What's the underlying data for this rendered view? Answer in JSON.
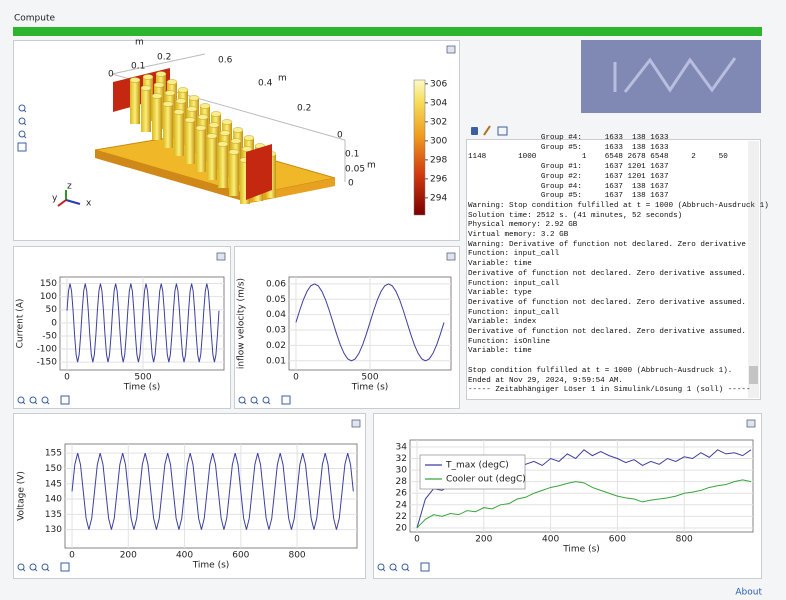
{
  "window": {
    "title": "Compute",
    "about": "About"
  },
  "model_view": {
    "axis_labels": [
      "m",
      "0.2",
      "0.1",
      "0",
      "0.6",
      "m",
      "0.4",
      "0.2",
      "0",
      "0.1",
      "m",
      "0.05",
      "0"
    ],
    "triad": [
      "z",
      "y",
      "x"
    ],
    "colorbar": {
      "ticks": [
        294,
        296,
        298,
        300,
        302,
        304,
        306
      ],
      "lim": [
        292.2,
        306.4
      ]
    }
  },
  "log": {
    "blocks": [
      [
        "                Group #4:     1633  138 1633",
        "                Group #5:     1633  138 1633",
        "1148       1000          1    6548 2678 6548     2     50",
        "                Group #1:     1637 1201 1637",
        "                Group #2:     1637 1201 1637",
        "                Group #4:     1637  138 1637",
        "                Group #5:     1637  138 1637",
        "Warning: Stop condition fulfilled at t = 1000 (Abbruch-Ausdruck 1)",
        "Solution time: 2512 s. (41 minutes, 52 seconds)",
        "Physical memory: 2.92 GB",
        "Virtual memory: 3.2 GB",
        "Warning: Derivative of function not declared. Zero derivative",
        "Function: input_call",
        "Variable: time",
        "Derivative of function not declared. Zero derivative assumed.",
        "Function: input_call",
        "Variable: type",
        "Derivative of function not declared. Zero derivative assumed.",
        "Function: input_call",
        "Variable: index",
        "Derivative of function not declared. Zero derivative assumed.",
        "Function: isOnline",
        "Variable: time"
      ],
      [
        "Stop condition fulfilled at t = 1000 (Abbruch-Ausdruck 1).",
        "Ended at Nov 29, 2024, 9:59:54 AM.",
        "----- Zeitabhängiger Löser 1 in Simulink/Lösung 1 (soll) -----"
      ]
    ]
  },
  "chart_data": [
    {
      "type": "line",
      "xlabel": "Time (s)",
      "ylabel": "Current (A)",
      "color": "#3d3f9e",
      "grid": true,
      "xlim": [
        -46,
        1033
      ],
      "ylim": [
        -180,
        175
      ],
      "xticks": [
        0,
        500
      ],
      "yticks": [
        -150,
        -100,
        -50,
        0,
        50,
        100,
        150
      ],
      "x": [
        0,
        10,
        20,
        30,
        40,
        50,
        60,
        70,
        80,
        90,
        100,
        110,
        120,
        130,
        140,
        150,
        160,
        170,
        180,
        190,
        200,
        210,
        220,
        230,
        240,
        250,
        260,
        270,
        280,
        290,
        300,
        310,
        320,
        330,
        340,
        350,
        360,
        370,
        380,
        390,
        400,
        410,
        420,
        430,
        440,
        450,
        460,
        470,
        480,
        490,
        500,
        510,
        520,
        530,
        540,
        550,
        560,
        570,
        580,
        590,
        600,
        610,
        620,
        630,
        640,
        650,
        660,
        670,
        680,
        690,
        700,
        710,
        720,
        730,
        740,
        750,
        760,
        770,
        780,
        790,
        800,
        810,
        820,
        830,
        840,
        850,
        860,
        870,
        880,
        890,
        900,
        910,
        920,
        930,
        940,
        950,
        960,
        970,
        980,
        990,
        1000
      ],
      "values": [
        46.4,
        121.4,
        150,
        121.4,
        46.4,
        -46.4,
        -121.4,
        -150,
        -121.4,
        -46.4,
        46.4,
        121.4,
        150,
        121.4,
        46.4,
        -46.4,
        -121.4,
        -150,
        -121.4,
        -46.4,
        46.4,
        121.4,
        150,
        121.4,
        46.4,
        -46.4,
        -121.4,
        -150,
        -121.4,
        -46.4,
        46.4,
        121.4,
        150,
        121.4,
        46.4,
        -46.4,
        -121.4,
        -150,
        -121.4,
        -46.4,
        46.4,
        121.4,
        150,
        121.4,
        46.4,
        -46.4,
        -121.4,
        -150,
        -121.4,
        -46.4,
        46.4,
        121.4,
        150,
        121.4,
        46.4,
        -46.4,
        -121.4,
        -150,
        -121.4,
        -46.4,
        46.4,
        121.4,
        150,
        121.4,
        46.4,
        -46.4,
        -121.4,
        -150,
        -121.4,
        -46.4,
        46.4,
        121.4,
        150,
        121.4,
        46.4,
        -46.4,
        -121.4,
        -150,
        -121.4,
        -46.4,
        46.4,
        121.4,
        150,
        121.4,
        46.4,
        -46.4,
        -121.4,
        -150,
        -121.4,
        -46.4,
        46.4,
        121.4,
        150,
        121.4,
        46.4,
        -46.4,
        -121.4,
        -150,
        -121.4,
        -46.4,
        46.4
      ]
    },
    {
      "type": "line",
      "xlabel": "Time (s)",
      "ylabel": "inflow velocity (m/s)",
      "color": "#3d3f9e",
      "grid": true,
      "xlim": [
        -47,
        1047
      ],
      "ylim": [
        0.004,
        0.0645
      ],
      "xticks": [
        0,
        500
      ],
      "yticks": [
        0.01,
        0.02,
        0.03,
        0.04,
        0.05,
        0.06
      ],
      "x": [
        0,
        25,
        50,
        75,
        100,
        125,
        150,
        175,
        200,
        225,
        250,
        275,
        300,
        325,
        350,
        375,
        400,
        425,
        450,
        475,
        500,
        525,
        550,
        575,
        600,
        625,
        650,
        675,
        700,
        725,
        750,
        775,
        800,
        825,
        850,
        875,
        900,
        925,
        950,
        975,
        1000
      ],
      "values": [
        0.035,
        0.0427,
        0.0497,
        0.0552,
        0.0588,
        0.06,
        0.0588,
        0.0552,
        0.0497,
        0.0427,
        0.035,
        0.0273,
        0.0203,
        0.0148,
        0.0112,
        0.01,
        0.0112,
        0.0148,
        0.0203,
        0.0273,
        0.035,
        0.0427,
        0.0497,
        0.0552,
        0.0588,
        0.06,
        0.0588,
        0.0552,
        0.0497,
        0.0427,
        0.035,
        0.0273,
        0.0203,
        0.0148,
        0.0112,
        0.01,
        0.0112,
        0.0148,
        0.0203,
        0.0273,
        0.035
      ]
    },
    {
      "type": "line",
      "xlabel": "Time (s)",
      "ylabel": "Voltage (V)",
      "color": "#3d3f9e",
      "grid": true,
      "xlim": [
        -25,
        1013
      ],
      "ylim": [
        124,
        158
      ],
      "xticks": [
        0,
        200,
        400,
        600,
        800
      ],
      "yticks": [
        130,
        135,
        140,
        145,
        150,
        155
      ],
      "x": [
        0,
        10,
        20,
        30,
        40,
        50,
        60,
        70,
        80,
        90,
        100,
        110,
        120,
        130,
        140,
        150,
        160,
        170,
        180,
        190,
        200,
        210,
        220,
        230,
        240,
        250,
        260,
        270,
        280,
        290,
        300,
        310,
        320,
        330,
        340,
        350,
        360,
        370,
        380,
        390,
        400,
        410,
        420,
        430,
        440,
        450,
        460,
        470,
        480,
        490,
        500,
        510,
        520,
        530,
        540,
        550,
        560,
        570,
        580,
        590,
        600,
        610,
        620,
        630,
        640,
        650,
        660,
        670,
        680,
        690,
        700,
        710,
        720,
        730,
        740,
        750,
        760,
        770,
        780,
        790,
        800,
        810,
        820,
        830,
        840,
        850,
        860,
        870,
        880,
        890,
        900,
        910,
        920,
        930,
        940,
        950,
        960,
        970,
        980,
        990,
        1000
      ],
      "values": [
        142.5,
        151.3,
        155,
        151.3,
        142.5,
        133.7,
        130,
        133.7,
        142.5,
        151.3,
        155,
        151.3,
        142.5,
        133.7,
        130,
        133.7,
        142.5,
        151.3,
        155,
        151.3,
        142.5,
        133.7,
        130,
        133.7,
        142.5,
        151.3,
        155,
        151.3,
        142.5,
        133.7,
        130,
        133.7,
        142.5,
        151.3,
        155,
        151.3,
        142.5,
        133.7,
        130,
        133.7,
        142.5,
        151.3,
        155,
        151.3,
        142.5,
        133.7,
        130,
        133.7,
        142.5,
        151.3,
        155,
        151.3,
        142.5,
        133.7,
        130,
        133.7,
        142.5,
        151.3,
        155,
        151.3,
        142.5,
        133.7,
        130,
        133.7,
        142.5,
        151.3,
        155,
        151.3,
        142.5,
        133.7,
        130,
        133.7,
        142.5,
        151.3,
        155,
        151.3,
        142.5,
        133.7,
        130,
        133.7,
        142.5,
        151.3,
        155,
        151.3,
        142.5,
        133.7,
        130,
        133.7,
        142.5,
        151.3,
        155,
        151.3,
        142.5,
        133.7,
        130,
        133.7,
        142.5,
        151.3,
        155,
        151.3,
        142.5
      ]
    },
    {
      "type": "line",
      "xlabel": "Time (s)",
      "grid": true,
      "legend": "upper left",
      "xlim": [
        -21,
        1006
      ],
      "ylim": [
        19.3,
        35.2
      ],
      "xticks": [
        0,
        200,
        400,
        600,
        800
      ],
      "yticks": [
        20,
        22,
        24,
        26,
        28,
        30,
        32,
        34
      ],
      "x": [
        0,
        25,
        50,
        75,
        100,
        125,
        150,
        175,
        200,
        225,
        250,
        275,
        300,
        325,
        350,
        375,
        400,
        425,
        450,
        475,
        500,
        525,
        550,
        575,
        600,
        625,
        650,
        675,
        700,
        725,
        750,
        775,
        800,
        825,
        850,
        875,
        900,
        925,
        950,
        975,
        1000
      ],
      "series": [
        {
          "name": "T_max (degC)",
          "color": "#3d3f9e",
          "values": [
            20,
            25,
            26.8,
            26.5,
            27.5,
            27.2,
            28.5,
            28.2,
            29.5,
            29,
            29.8,
            30.5,
            30,
            31,
            31.5,
            30.8,
            32,
            31.5,
            32.8,
            32,
            33.5,
            32.5,
            33.2,
            32.5,
            32,
            31.3,
            31.8,
            30.8,
            31.5,
            31,
            32,
            31.5,
            32.3,
            32,
            33,
            32.2,
            33.5,
            32.8,
            33,
            32.5,
            33.5
          ]
        },
        {
          "name": "Cooler out (degC)",
          "color": "#3aa53a",
          "values": [
            20,
            21.5,
            22.3,
            22,
            22.5,
            22.3,
            23,
            22.8,
            23.5,
            23.3,
            24,
            24.2,
            25,
            25.3,
            26,
            26.5,
            27,
            27.3,
            27.7,
            28,
            27.8,
            27,
            26.5,
            26,
            25.5,
            25.2,
            25,
            24.5,
            24.8,
            25,
            25.2,
            25.5,
            26,
            26.2,
            26.5,
            27,
            27.3,
            27.5,
            28,
            28.3,
            28
          ]
        }
      ]
    }
  ]
}
